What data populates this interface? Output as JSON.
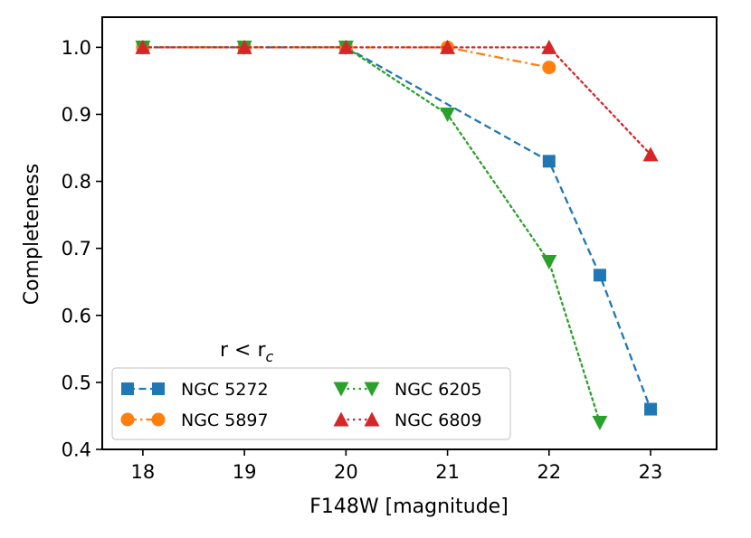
{
  "chart_data": {
    "type": "line",
    "title": "",
    "xlabel": "F148W [magnitude]",
    "ylabel": "Completeness",
    "xlim": [
      17.6,
      23.65
    ],
    "ylim": [
      0.4,
      1.045
    ],
    "xticks": [
      18,
      19,
      20,
      21,
      22,
      23
    ],
    "yticks": [
      0.4,
      0.5,
      0.6,
      0.7,
      0.8,
      0.9,
      1.0
    ],
    "xtick_labels": [
      "18",
      "19",
      "20",
      "21",
      "22",
      "23"
    ],
    "ytick_labels": [
      "0.4",
      "0.5",
      "0.6",
      "0.7",
      "0.8",
      "0.9",
      "1.0"
    ],
    "annotation": {
      "text": "r < r",
      "subscript": "c"
    },
    "legend_position": "lower-left",
    "series": [
      {
        "name": "NGC 5272",
        "color": "#1f77b4",
        "marker": "square",
        "linestyle": "dashed",
        "x": [
          18,
          19,
          20,
          22,
          22.5,
          23
        ],
        "y": [
          1.0,
          1.0,
          1.0,
          0.83,
          0.66,
          0.46
        ]
      },
      {
        "name": "NGC 5897",
        "color": "#ff7f0e",
        "marker": "circle",
        "linestyle": "dashdot",
        "x": [
          18,
          19,
          20,
          21,
          22
        ],
        "y": [
          1.0,
          1.0,
          1.0,
          1.0,
          0.97
        ]
      },
      {
        "name": "NGC 6205",
        "color": "#2ca02c",
        "marker": "triangle-down",
        "linestyle": "dotted",
        "x": [
          18,
          19,
          20,
          21,
          22,
          22.5
        ],
        "y": [
          1.0,
          1.0,
          1.0,
          0.9,
          0.68,
          0.44
        ]
      },
      {
        "name": "NGC 6809",
        "color": "#d62728",
        "marker": "triangle-up",
        "linestyle": "dotted",
        "x": [
          18,
          19,
          20,
          21,
          22,
          23
        ],
        "y": [
          1.0,
          1.0,
          1.0,
          1.0,
          1.0,
          0.84
        ]
      }
    ]
  }
}
